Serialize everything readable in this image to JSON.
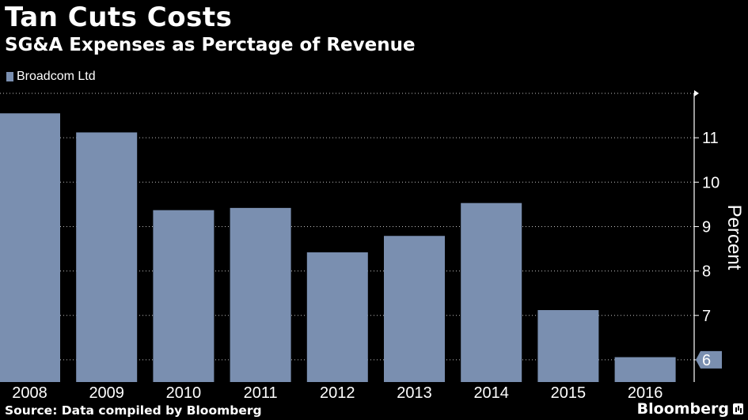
{
  "header": {
    "title": "Tan Cuts Costs",
    "subtitle": "SG&A Expenses as Perctage of Revenue"
  },
  "footer": {
    "source": "Source: Data compiled by Bloomberg",
    "brand": "Bloomberg"
  },
  "colors": {
    "background": "#000000",
    "bar": "#7a8fb0",
    "grid": "#ffffff"
  },
  "chart_data": {
    "type": "bar",
    "title": "Tan Cuts Costs",
    "subtitle": "SG&A Expenses as Perctage of Revenue",
    "categories": [
      "2008",
      "2009",
      "2010",
      "2011",
      "2012",
      "2013",
      "2014",
      "2015",
      "2016"
    ],
    "series": [
      {
        "name": "Broadcom Ltd",
        "values": [
          11.55,
          11.12,
          9.37,
          9.42,
          8.42,
          8.79,
          9.53,
          7.12,
          6.06
        ]
      }
    ],
    "ylabel": "Percent",
    "ylim": [
      5.5,
      12.0
    ],
    "yticks": [
      6,
      7,
      8,
      9,
      10,
      11
    ],
    "grid": true,
    "grid_style": "dotted-horizontal",
    "y_axis_side": "right",
    "legend_position": "top-left",
    "last_value_marker": 6
  }
}
